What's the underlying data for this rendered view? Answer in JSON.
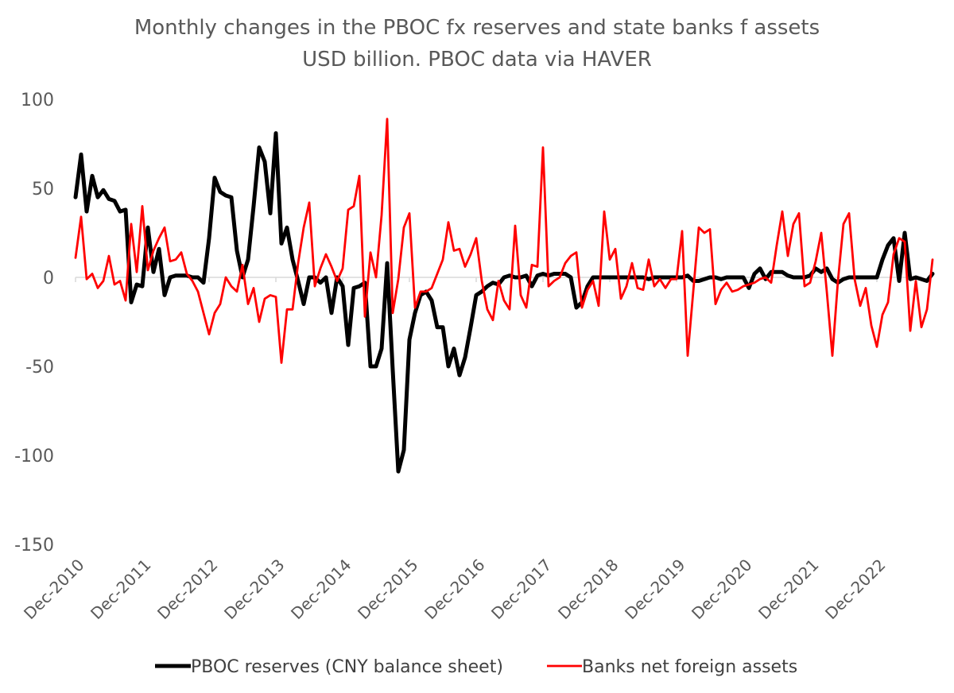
{
  "chart_data": {
    "type": "line",
    "title": "Monthly changes in the PBOC fx reserves and state banks f assets",
    "subtitle": "USD billion.   PBOC data via HAVER",
    "xlabel": "",
    "ylabel": "",
    "ylim": [
      -150,
      100
    ],
    "y_ticks": [
      100,
      50,
      0,
      -50,
      -100,
      -150
    ],
    "x_tick_labels": [
      "Dec-2010",
      "Dec-2011",
      "Dec-2012",
      "Dec-2013",
      "Dec-2014",
      "Dec-2015",
      "Dec-2016",
      "Dec-2017",
      "Dec-2018",
      "Dec-2019",
      "Dec-2020",
      "Dec-2021",
      "Dec-2022"
    ],
    "x_start": "Dec-2010",
    "x_end": "Jul-2023",
    "grid": false,
    "legend_position": "bottom",
    "series": [
      {
        "name": "PBOC reserves (CNY balance sheet)",
        "color": "#000000",
        "values": [
          45,
          69,
          37,
          57,
          45,
          49,
          44,
          43,
          37,
          38,
          -14,
          -4,
          -5,
          28,
          3,
          16,
          -10,
          0,
          1,
          1,
          1,
          0,
          0,
          -3,
          22,
          56,
          48,
          46,
          45,
          15,
          0,
          10,
          40,
          73,
          65,
          36,
          81,
          19,
          28,
          10,
          -2,
          -15,
          0,
          0,
          -3,
          0,
          -20,
          0,
          -5,
          -38,
          -6,
          -5,
          -3,
          -50,
          -50,
          -40,
          8,
          -52,
          -109,
          -97,
          -35,
          -20,
          -10,
          -8,
          -13,
          -28,
          -28,
          -50,
          -40,
          -55,
          -45,
          -28,
          -10,
          -8,
          -5,
          -3,
          -4,
          0,
          1,
          0,
          0,
          1,
          -5,
          1,
          2,
          1,
          2,
          2,
          2,
          0,
          -17,
          -14,
          -5,
          0,
          0,
          0,
          0,
          0,
          0,
          0,
          0,
          0,
          0,
          -1,
          0,
          0,
          0,
          0,
          0,
          0,
          1,
          -2,
          -2,
          -1,
          0,
          0,
          -1,
          0,
          0,
          0,
          0,
          -6,
          2,
          5,
          -1,
          3,
          3,
          3,
          1,
          0,
          0,
          0,
          1,
          5,
          3,
          5,
          -1,
          -3,
          -1,
          0,
          0,
          0,
          0,
          0,
          0,
          10,
          18,
          22,
          -2,
          25,
          -1,
          0,
          -1,
          -2,
          2
        ]
      },
      {
        "name": "Banks net foreign assets",
        "color": "#ff0000",
        "values": [
          11,
          34,
          -1,
          2,
          -6,
          -2,
          12,
          -4,
          -2,
          -13,
          30,
          3,
          40,
          4,
          15,
          22,
          28,
          9,
          10,
          14,
          2,
          -2,
          -8,
          -20,
          -32,
          -20,
          -15,
          0,
          -5,
          -8,
          7,
          -15,
          -6,
          -25,
          -12,
          -10,
          -11,
          -48,
          -18,
          -18,
          8,
          28,
          42,
          -5,
          5,
          13,
          6,
          -2,
          5,
          38,
          40,
          57,
          -22,
          14,
          0,
          35,
          89,
          -20,
          -1,
          28,
          36,
          -17,
          -8,
          -8,
          -6,
          2,
          10,
          31,
          15,
          16,
          6,
          13,
          22,
          -2,
          -18,
          -24,
          -2,
          -13,
          -18,
          29,
          -10,
          -17,
          7,
          6,
          73,
          -5,
          -2,
          0,
          8,
          12,
          14,
          -17,
          -7,
          -2,
          -16,
          37,
          10,
          16,
          -12,
          -5,
          8,
          -6,
          -7,
          10,
          -5,
          -1,
          -6,
          -1,
          -1,
          26,
          -44,
          -8,
          28,
          25,
          27,
          -15,
          -7,
          -3,
          -8,
          -7,
          -5,
          -4,
          -3,
          -1,
          0,
          -3,
          18,
          37,
          12,
          30,
          36,
          -5,
          -3,
          9,
          25,
          -8,
          -44,
          -2,
          30,
          36,
          -1,
          -16,
          -6,
          -27,
          -39,
          -21,
          -14,
          13,
          22,
          20,
          -30,
          -2,
          -28,
          -18,
          10
        ]
      }
    ]
  }
}
